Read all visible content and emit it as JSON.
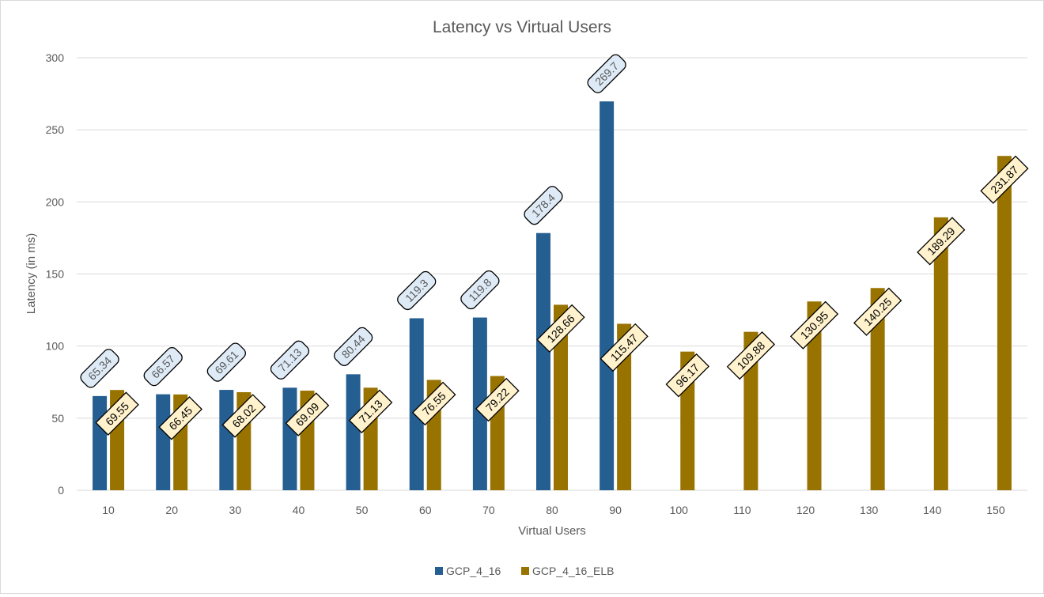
{
  "chart_data": {
    "type": "bar",
    "title": "Latency vs Virtual Users",
    "xlabel": "Virtual Users",
    "ylabel": "Latency (in ms)",
    "ylim": [
      0,
      300
    ],
    "yticks": [
      0,
      50,
      100,
      150,
      200,
      250,
      300
    ],
    "grid": true,
    "legend_position": "bottom",
    "categories": [
      "10",
      "20",
      "30",
      "40",
      "50",
      "60",
      "70",
      "80",
      "90",
      "100",
      "110",
      "120",
      "130",
      "140",
      "150"
    ],
    "series": [
      {
        "name": "GCP_4_16",
        "color": "#255E91",
        "label_fill": "#DEEBF7",
        "label_text_color": "#595959",
        "values": [
          65.34,
          66.57,
          69.61,
          71.13,
          80.44,
          119.3,
          119.8,
          178.4,
          269.7,
          null,
          null,
          null,
          null,
          null,
          null
        ],
        "labels": [
          "65.34",
          "66.57",
          "69.61",
          "71.13",
          "80.44",
          "119.3",
          "119.8",
          "178.4",
          "269.7",
          null,
          null,
          null,
          null,
          null,
          null
        ]
      },
      {
        "name": "GCP_4_16_ELB",
        "color": "#997300",
        "label_fill": "#FFF2CC",
        "label_text_color": "#000000",
        "values": [
          69.55,
          66.45,
          68.02,
          69.09,
          71.13,
          76.55,
          79.22,
          128.66,
          115.47,
          96.17,
          109.88,
          130.95,
          140.25,
          189.29,
          231.87
        ],
        "labels": [
          "69.55",
          "66.45",
          "68.02",
          "69.09",
          "71.13",
          "76.55",
          "79.22",
          "128.66",
          "115.47",
          "96.17",
          "109.88",
          "130.95",
          "140.25",
          "189.29",
          "231.87"
        ]
      }
    ]
  }
}
